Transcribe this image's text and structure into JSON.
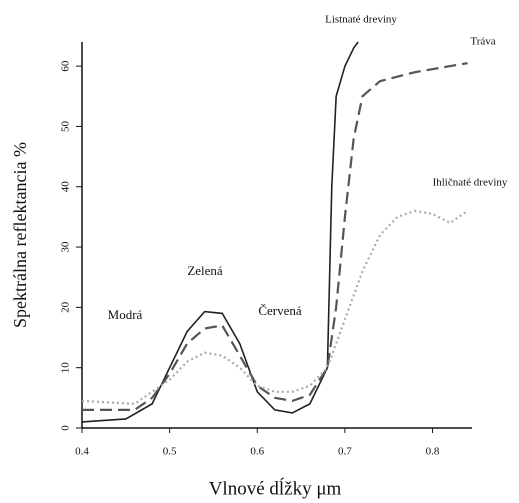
{
  "chart_data": {
    "type": "line",
    "xlabel": "Vlnové dĺžky μm",
    "ylabel": "Spektrálna reflektancia %",
    "xlim": [
      0.4,
      0.845
    ],
    "ylim": [
      0,
      64
    ],
    "xticks": [
      0.4,
      0.5,
      0.6,
      0.7,
      0.8
    ],
    "yticks": [
      0,
      10,
      20,
      30,
      40,
      50,
      60
    ],
    "annotations": [
      "Modrá",
      "Zelená",
      "Červená"
    ],
    "series": [
      {
        "name": "Listnaté dreviny",
        "color": "#222222",
        "dash": "solid",
        "x": [
          0.4,
          0.45,
          0.48,
          0.5,
          0.52,
          0.54,
          0.56,
          0.58,
          0.6,
          0.62,
          0.64,
          0.66,
          0.68,
          0.685,
          0.69,
          0.7,
          0.71,
          0.715
        ],
        "values": [
          1,
          1.5,
          4,
          10,
          16,
          19.3,
          19,
          14,
          6,
          3,
          2.5,
          4,
          10,
          40,
          55,
          60,
          63,
          64
        ]
      },
      {
        "name": "Tráva",
        "color": "#555555",
        "dash": "dashed",
        "x": [
          0.4,
          0.46,
          0.48,
          0.5,
          0.52,
          0.54,
          0.56,
          0.58,
          0.6,
          0.62,
          0.64,
          0.66,
          0.68,
          0.69,
          0.7,
          0.71,
          0.72,
          0.74,
          0.78,
          0.84
        ],
        "values": [
          3,
          3,
          5,
          9,
          14,
          16.5,
          17,
          12,
          7,
          5,
          4.5,
          5.5,
          10,
          20,
          35,
          48,
          55,
          57.5,
          59,
          60.5
        ]
      },
      {
        "name": "Ihličnaté dreviny",
        "color": "#aaaaaa",
        "dash": "dotted",
        "x": [
          0.4,
          0.46,
          0.48,
          0.5,
          0.52,
          0.54,
          0.56,
          0.58,
          0.6,
          0.62,
          0.64,
          0.66,
          0.68,
          0.7,
          0.72,
          0.74,
          0.76,
          0.78,
          0.8,
          0.82,
          0.84
        ],
        "values": [
          4.5,
          4,
          6,
          8,
          11,
          12.5,
          12,
          10,
          7,
          6,
          6,
          7,
          10,
          18,
          26,
          32,
          35,
          36,
          35.5,
          34,
          36
        ]
      }
    ]
  }
}
